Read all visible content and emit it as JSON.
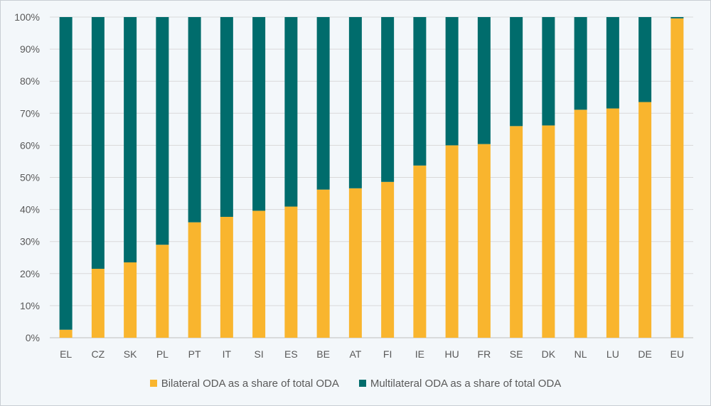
{
  "chart_data": {
    "type": "bar",
    "stacked": true,
    "categories": [
      "EL",
      "CZ",
      "SK",
      "PL",
      "PT",
      "IT",
      "SI",
      "ES",
      "BE",
      "AT",
      "FI",
      "IE",
      "HU",
      "FR",
      "SE",
      "DK",
      "NL",
      "LU",
      "DE",
      "EU"
    ],
    "series": [
      {
        "name": "Bilateral ODA as a share of total ODA",
        "color": "#f9b52e",
        "values": [
          2.5,
          21.5,
          23.5,
          29,
          36,
          37.7,
          39.6,
          40.9,
          46.2,
          46.6,
          48.6,
          53.7,
          60,
          60.4,
          66,
          66.2,
          71.1,
          71.5,
          73.5,
          99.6
        ]
      },
      {
        "name": "Multilateral ODA as a share of total ODA",
        "color": "#006c6c",
        "values": [
          97.5,
          78.5,
          76.5,
          71,
          64,
          62.3,
          60.4,
          59.1,
          53.8,
          53.4,
          51.4,
          46.3,
          40,
          39.6,
          34,
          33.8,
          28.9,
          28.5,
          26.5,
          0.4
        ]
      }
    ],
    "ylim": [
      0,
      100
    ],
    "yticks": [
      "0%",
      "10%",
      "20%",
      "30%",
      "40%",
      "50%",
      "60%",
      "70%",
      "80%",
      "90%",
      "100%"
    ],
    "grid": true,
    "legend_position": "bottom"
  }
}
